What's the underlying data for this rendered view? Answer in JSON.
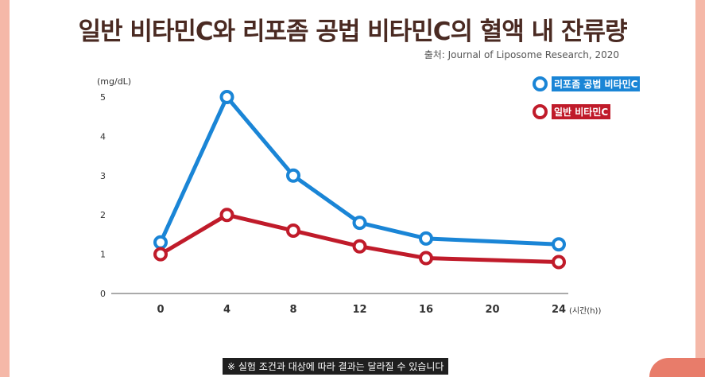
{
  "chart_data": {
    "type": "line",
    "title": "일반 비타민C와 리포좀 공법 비타민C의 혈액 내 잔류량",
    "source": "출처: Journal of Liposome Research, 2020",
    "ylabel": "(mg/dL)",
    "xlabel": "(시간(h))",
    "x": [
      0,
      4,
      8,
      12,
      16,
      20,
      24
    ],
    "x_tick_labels": [
      "0",
      "4",
      "8",
      "12",
      "16",
      "20",
      "24"
    ],
    "y_tick_labels": [
      "0",
      "1",
      "2",
      "3",
      "4",
      "5"
    ],
    "ylim": [
      0,
      5
    ],
    "xlim": [
      0,
      24
    ],
    "grid": false,
    "legend_position": "top-right",
    "series": [
      {
        "name": "리포좀 공법 비타민C",
        "color": "#1a85d6",
        "points": [
          [
            0,
            1.3
          ],
          [
            4,
            5.0
          ],
          [
            8,
            3.0
          ],
          [
            12,
            1.8
          ],
          [
            16,
            1.4
          ],
          [
            24,
            1.25
          ]
        ]
      },
      {
        "name": "일반 비타민C",
        "color": "#c01b2a",
        "points": [
          [
            0,
            1.0
          ],
          [
            4,
            2.0
          ],
          [
            8,
            1.6
          ],
          [
            12,
            1.2
          ],
          [
            16,
            0.9
          ],
          [
            24,
            0.8
          ]
        ]
      }
    ]
  },
  "footer": {
    "caption": "※ 실험 조건과 대상에 따라 결과는 달라질 수 있습니다"
  }
}
